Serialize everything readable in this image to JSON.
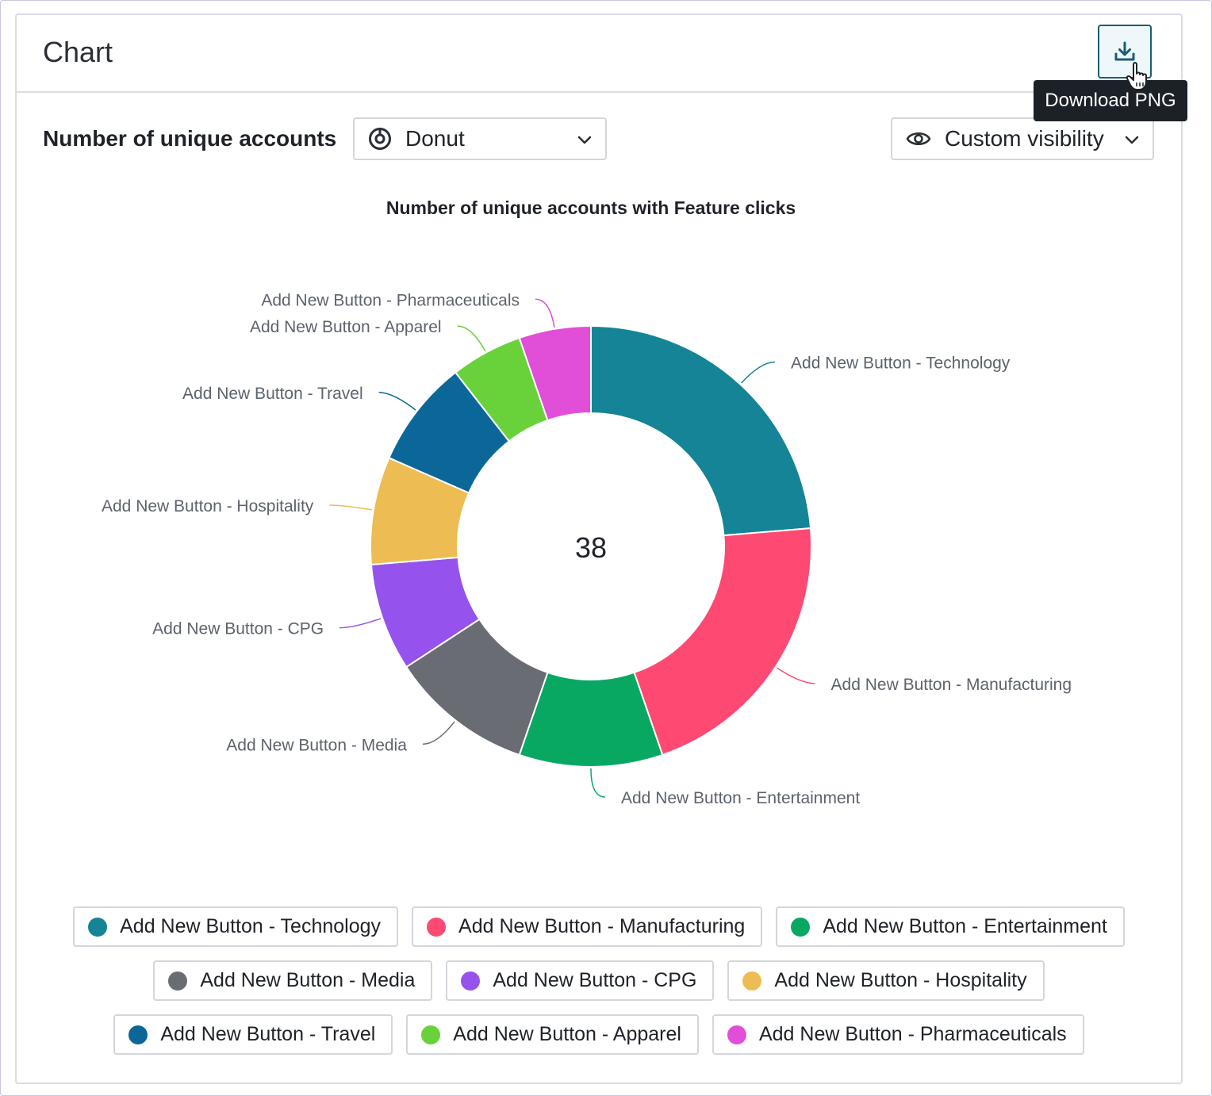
{
  "card": {
    "title": "Chart"
  },
  "toolbar": {
    "download_icon": "download-icon",
    "tooltip": "Download PNG",
    "metric_label": "Number of unique accounts",
    "chart_type": {
      "icon": "donut-icon",
      "value": "Donut"
    },
    "visibility": {
      "icon": "eye-icon",
      "value": "Custom visibility"
    }
  },
  "chart_data": {
    "type": "pie",
    "variant": "donut",
    "title": "Number of unique accounts with Feature clicks",
    "center_label": "38",
    "total": 38,
    "slices": [
      {
        "label": "Add New Button - Technology",
        "value": 9,
        "color": "#158496"
      },
      {
        "label": "Add New Button - Manufacturing",
        "value": 8,
        "color": "#fe4a72"
      },
      {
        "label": "Add New Button - Entertainment",
        "value": 4,
        "color": "#08a862"
      },
      {
        "label": "Add New Button - Media",
        "value": 4,
        "color": "#6a6c73"
      },
      {
        "label": "Add New Button - CPG",
        "value": 3,
        "color": "#9652ec"
      },
      {
        "label": "Add New Button - Hospitality",
        "value": 3,
        "color": "#edbd53"
      },
      {
        "label": "Add New Button - Travel",
        "value": 3,
        "color": "#0c6799"
      },
      {
        "label": "Add New Button - Apparel",
        "value": 2,
        "color": "#69d23a"
      },
      {
        "label": "Add New Button - Pharmaceuticals",
        "value": 2,
        "color": "#e14ed7"
      }
    ],
    "legend_placement": "bottom"
  },
  "legend": {
    "rows": [
      [
        {
          "label": "Add New Button - Technology",
          "color": "#158496"
        },
        {
          "label": "Add New Button - Manufacturing",
          "color": "#fe4a72"
        },
        {
          "label": "Add New Button - Entertainment",
          "color": "#08a862"
        }
      ],
      [
        {
          "label": "Add New Button - Media",
          "color": "#6a6c73"
        },
        {
          "label": "Add New Button - CPG",
          "color": "#9652ec"
        },
        {
          "label": "Add New Button - Hospitality",
          "color": "#edbd53"
        }
      ],
      [
        {
          "label": "Add New Button - Travel",
          "color": "#0c6799"
        },
        {
          "label": "Add New Button - Apparel",
          "color": "#69d23a"
        },
        {
          "label": "Add New Button - Pharmaceuticals",
          "color": "#e14ed7"
        }
      ]
    ]
  }
}
